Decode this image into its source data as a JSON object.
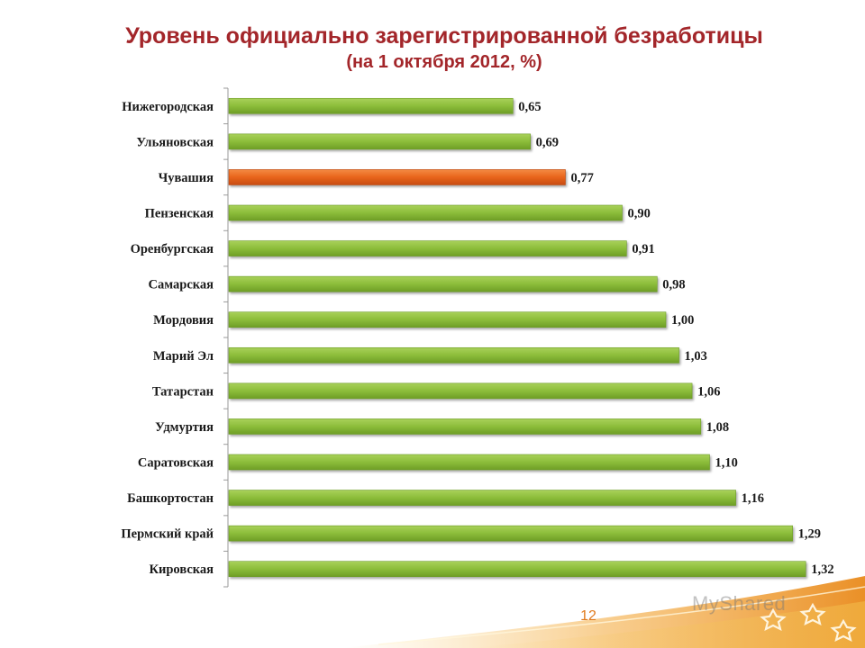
{
  "slide": {
    "page_number": "12",
    "watermark": "MyShared"
  },
  "colors": {
    "title": "#a3262a",
    "bar_default": "#8dbd3c",
    "bar_highlight": "#e8641c",
    "page_number": "#e07b1e"
  },
  "chart_data": {
    "type": "bar",
    "orientation": "horizontal",
    "title": "Уровень официально зарегистрированной безработицы",
    "subtitle": "(на 1 октября 2012, %)",
    "xlabel": "",
    "ylabel": "",
    "xlim": [
      0,
      1.4
    ],
    "grid": false,
    "categories": [
      "Нижегородская",
      "Ульяновская",
      "Чувашия",
      "Пензенская",
      "Оренбургская",
      "Самарская",
      "Мордовия",
      "Марий Эл",
      "Татарстан",
      "Удмуртия",
      "Саратовская",
      "Башкортостан",
      "Пермский край",
      "Кировская"
    ],
    "values": [
      0.65,
      0.69,
      0.77,
      0.9,
      0.91,
      0.98,
      1.0,
      1.03,
      1.06,
      1.08,
      1.1,
      1.16,
      1.29,
      1.32
    ],
    "value_labels": [
      "0,65",
      "0,69",
      "0,77",
      "0,90",
      "0,91",
      "0,98",
      "1,00",
      "1,03",
      "1,06",
      "1,08",
      "1,10",
      "1,16",
      "1,29",
      "1,32"
    ],
    "highlight": "Чувашия"
  }
}
